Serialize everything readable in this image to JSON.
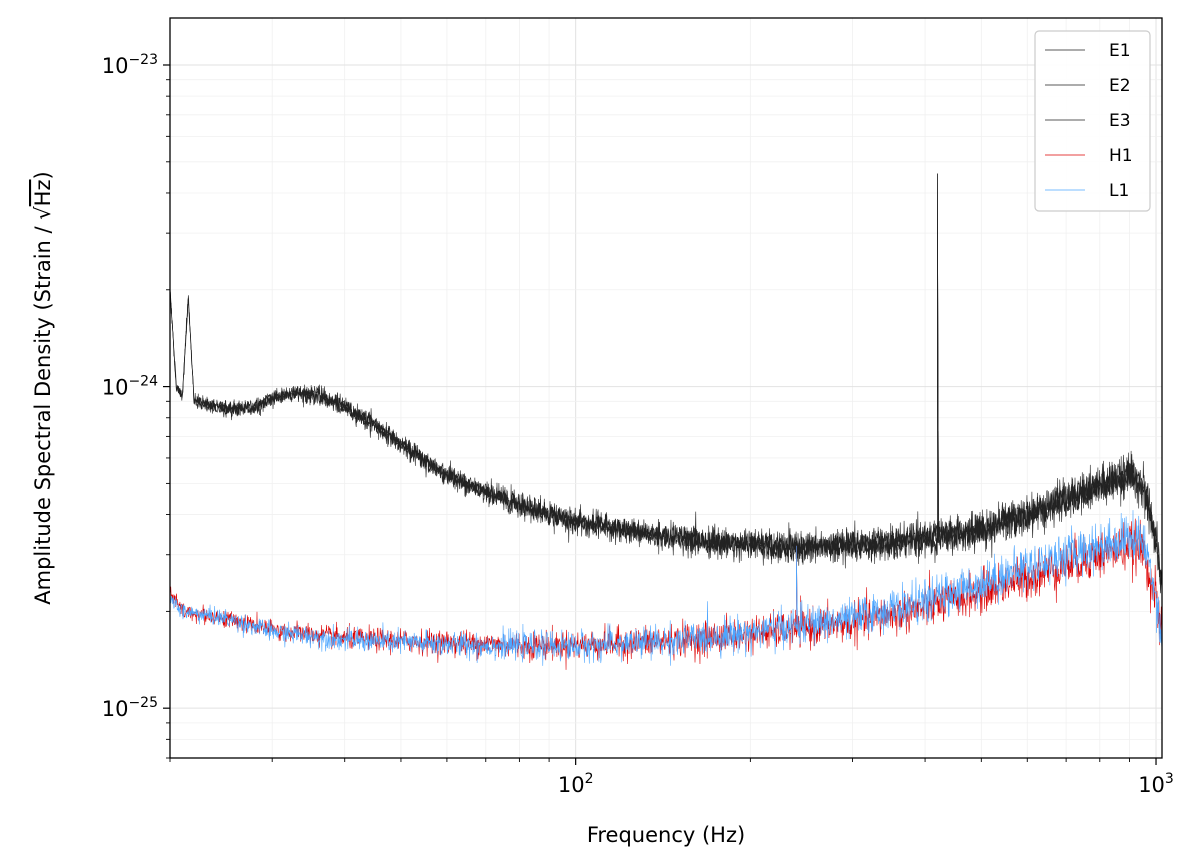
{
  "chart_data": {
    "type": "line",
    "xlabel": "Frequency (Hz)",
    "ylabel_prefix": "Amplitude Spectral Density (Strain / ",
    "ylabel_radical": "Hz",
    "ylabel_suffix": ")",
    "xscale": "log",
    "yscale": "log",
    "xlim": [
      20,
      1024
    ],
    "ylim": [
      7e-26,
      1.4e-23
    ],
    "grid": true,
    "legend_position": "top-right",
    "x_ticks": [
      {
        "value": 100,
        "base": "10",
        "exp": "2"
      },
      {
        "value": 1000,
        "base": "10",
        "exp": "3"
      }
    ],
    "y_ticks": [
      {
        "value": 1e-25,
        "base": "10",
        "exp": "−25"
      },
      {
        "value": 1e-24,
        "base": "10",
        "exp": "−24"
      },
      {
        "value": 1e-23,
        "base": "10",
        "exp": "−23"
      }
    ],
    "series": [
      {
        "name": "E1",
        "color": "#222222"
      },
      {
        "name": "E2",
        "color": "#222222"
      },
      {
        "name": "E3",
        "color": "#222222"
      },
      {
        "name": "H1",
        "color": "#dd0000"
      },
      {
        "name": "L1",
        "color": "#4da6ff"
      }
    ],
    "e_shape": [
      [
        20,
        2e-24
      ],
      [
        20.5,
        1e-24
      ],
      [
        21,
        9.3e-25
      ],
      [
        21.5,
        1.9e-24
      ],
      [
        22,
        9e-25
      ],
      [
        25,
        8.5e-25
      ],
      [
        28,
        8.6e-25
      ],
      [
        30,
        9.2e-25
      ],
      [
        33,
        9.6e-25
      ],
      [
        36,
        9.4e-25
      ],
      [
        40,
        8.6e-25
      ],
      [
        45,
        7.6e-25
      ],
      [
        50,
        6.6e-25
      ],
      [
        60,
        5.3e-25
      ],
      [
        70,
        4.7e-25
      ],
      [
        80,
        4.3e-25
      ],
      [
        100,
        3.8e-25
      ],
      [
        130,
        3.5e-25
      ],
      [
        170,
        3.3e-25
      ],
      [
        230,
        3.15e-25
      ],
      [
        300,
        3.2e-25
      ],
      [
        400,
        3.35e-25
      ],
      [
        500,
        3.6e-25
      ],
      [
        600,
        4e-25
      ],
      [
        750,
        4.7e-25
      ],
      [
        900,
        5.3e-25
      ],
      [
        950,
        5e-25
      ],
      [
        1000,
        3.3e-25
      ],
      [
        1024,
        2.4e-25
      ]
    ],
    "e_spike": {
      "x": 420,
      "y": 4.6e-24
    },
    "h_shape": [
      [
        20,
        2.3e-25
      ],
      [
        21,
        2e-25
      ],
      [
        25,
        1.9e-25
      ],
      [
        30,
        1.75e-25
      ],
      [
        40,
        1.65e-25
      ],
      [
        60,
        1.6e-25
      ],
      [
        80,
        1.57e-25
      ],
      [
        100,
        1.57e-25
      ],
      [
        150,
        1.62e-25
      ],
      [
        200,
        1.7e-25
      ],
      [
        300,
        1.85e-25
      ],
      [
        400,
        2.05e-25
      ],
      [
        500,
        2.3e-25
      ],
      [
        600,
        2.55e-25
      ],
      [
        750,
        2.9e-25
      ],
      [
        900,
        3.2e-25
      ],
      [
        950,
        3.1e-25
      ],
      [
        1000,
        2.2e-25
      ],
      [
        1024,
        1.6e-25
      ]
    ],
    "l_shape": [
      [
        20,
        2.2e-25
      ],
      [
        21,
        2e-25
      ],
      [
        25,
        1.9e-25
      ],
      [
        30,
        1.73e-25
      ],
      [
        40,
        1.63e-25
      ],
      [
        60,
        1.58e-25
      ],
      [
        80,
        1.56e-25
      ],
      [
        100,
        1.56e-25
      ],
      [
        150,
        1.62e-25
      ],
      [
        200,
        1.72e-25
      ],
      [
        300,
        1.9e-25
      ],
      [
        400,
        2.15e-25
      ],
      [
        500,
        2.45e-25
      ],
      [
        600,
        2.75e-25
      ],
      [
        750,
        3.1e-25
      ],
      [
        900,
        3.4e-25
      ],
      [
        950,
        3.3e-25
      ],
      [
        1000,
        2.3e-25
      ],
      [
        1024,
        1.6e-25
      ]
    ],
    "hl_spike": {
      "x": 240,
      "y": 3.2e-25
    }
  }
}
